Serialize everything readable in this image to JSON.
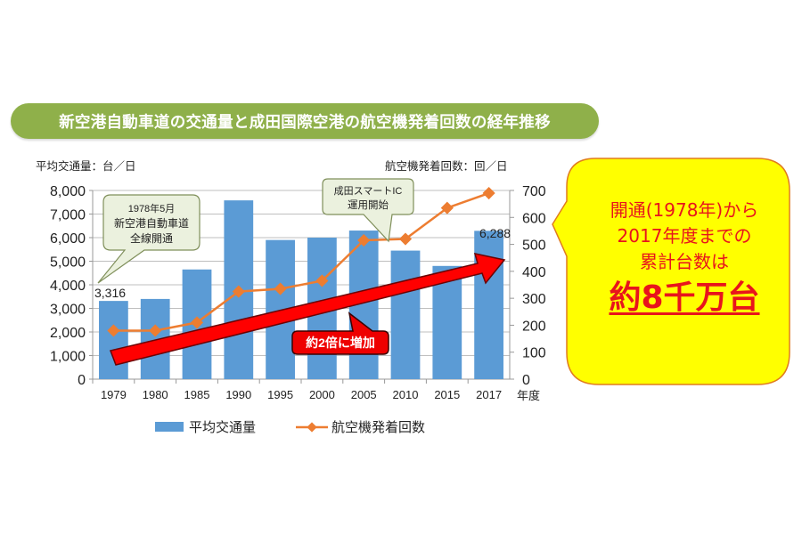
{
  "title": "新空港自動車道の交通量と成田国際空港の航空機発着回数の経年推移",
  "left_axis_unit": "平均交通量：台／日",
  "right_axis_unit": "航空機発着回数：回／日",
  "x_axis_unit": "年度",
  "callouts": {
    "opening": [
      "1978年5月",
      "新空港自動車道",
      "全線開通"
    ],
    "smart_ic": [
      "成田スマートIC",
      "運用開始"
    ],
    "increase": "約2倍に増加"
  },
  "data_labels": {
    "first": "3,316",
    "last": "6,288"
  },
  "summary_box": {
    "lines": [
      "開通(1978年)から",
      "2017年度までの",
      "累計台数は"
    ],
    "emphasis": "約8千万台",
    "text_color": "#e8141c",
    "fill_color": "#ffff00",
    "border_color": "#e07b1e"
  },
  "legend": [
    {
      "label": "平均交通量",
      "type": "bar",
      "color": "#5b9bd5"
    },
    {
      "label": "航空機発着回数",
      "type": "line",
      "color": "#ed7d31"
    }
  ],
  "chart_data": {
    "type": "bar",
    "title": "新空港自動車道の交通量と成田国際空港の航空機発着回数の経年推移",
    "categories": [
      "1979",
      "1980",
      "1985",
      "1990",
      "1995",
      "2000",
      "2005",
      "2010",
      "2015",
      "2017"
    ],
    "series": [
      {
        "name": "平均交通量",
        "type": "bar",
        "axis": "left",
        "color": "#5b9bd5",
        "values": [
          3316,
          3400,
          4650,
          7580,
          5900,
          6000,
          6300,
          5450,
          4800,
          6288
        ]
      },
      {
        "name": "航空機発着回数",
        "type": "line",
        "axis": "right",
        "color": "#ed7d31",
        "values": [
          180,
          180,
          210,
          325,
          335,
          365,
          515,
          520,
          635,
          690
        ]
      }
    ],
    "xlabel": "年度",
    "ylabel": "平均交通量：台／日",
    "y2label": "航空機発着回数：回／日",
    "ylim": [
      0,
      8000
    ],
    "y2lim": [
      0,
      700
    ],
    "yticks": [
      "0",
      "1,000",
      "2,000",
      "3,000",
      "4,000",
      "5,000",
      "6,000",
      "7,000",
      "8,000"
    ],
    "y2ticks": [
      "0",
      "100",
      "200",
      "300",
      "400",
      "500",
      "600",
      "700"
    ],
    "grid": true,
    "legend_position": "bottom",
    "annotations": [
      "3,316",
      "6,288",
      "1978年5月 新空港自動車道 全線開通",
      "成田スマートIC 運用開始",
      "約2倍に増加"
    ]
  }
}
